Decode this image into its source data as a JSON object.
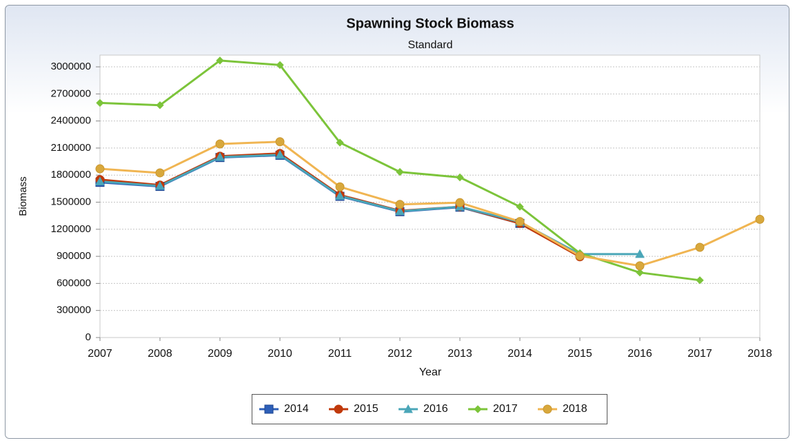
{
  "chart_data": {
    "type": "line",
    "title": "Spawning Stock Biomass",
    "subtitle": "Standard",
    "x_label": "Year",
    "y_label": "Biomass",
    "x": [
      2007,
      2008,
      2009,
      2010,
      2011,
      2012,
      2013,
      2014,
      2015,
      2016,
      2017,
      2018
    ],
    "xlim": [
      2007,
      2018
    ],
    "xticks": [
      2007,
      2008,
      2009,
      2010,
      2011,
      2012,
      2013,
      2014,
      2015,
      2016,
      2017,
      2018
    ],
    "ylim": [
      0,
      3130000
    ],
    "yticks": [
      0,
      300000,
      600000,
      900000,
      1200000,
      1500000,
      1800000,
      2100000,
      2400000,
      2700000,
      3000000
    ],
    "grid": true,
    "legend": "bottom",
    "series": [
      {
        "name": "2014",
        "color": "#2d5fb8",
        "marker": "square",
        "values": [
          1720000,
          1675000,
          1995000,
          2020000,
          1565000,
          1395000,
          1445000,
          1265000,
          null,
          null,
          null,
          null
        ]
      },
      {
        "name": "2015",
        "color": "#c0390b",
        "marker": "circle",
        "values": [
          1750000,
          1690000,
          2010000,
          2040000,
          1580000,
          1405000,
          1450000,
          1265000,
          895000,
          null,
          null,
          null
        ]
      },
      {
        "name": "2016",
        "color": "#4aa6b8",
        "marker": "triangle",
        "values": [
          1730000,
          1680000,
          2000000,
          2025000,
          1570000,
          1400000,
          1450000,
          1280000,
          925000,
          925000,
          null,
          null
        ]
      },
      {
        "name": "2017",
        "color": "#7cc43a",
        "marker": "diamond",
        "values": [
          2600000,
          2575000,
          3070000,
          3020000,
          2160000,
          1835000,
          1775000,
          1450000,
          935000,
          720000,
          635000,
          null
        ]
      },
      {
        "name": "2018",
        "color": "#f0b552",
        "marker": "circle",
        "values": [
          1870000,
          1825000,
          2145000,
          2170000,
          1670000,
          1475000,
          1495000,
          1285000,
          905000,
          795000,
          1000000,
          1310000
        ]
      }
    ]
  }
}
